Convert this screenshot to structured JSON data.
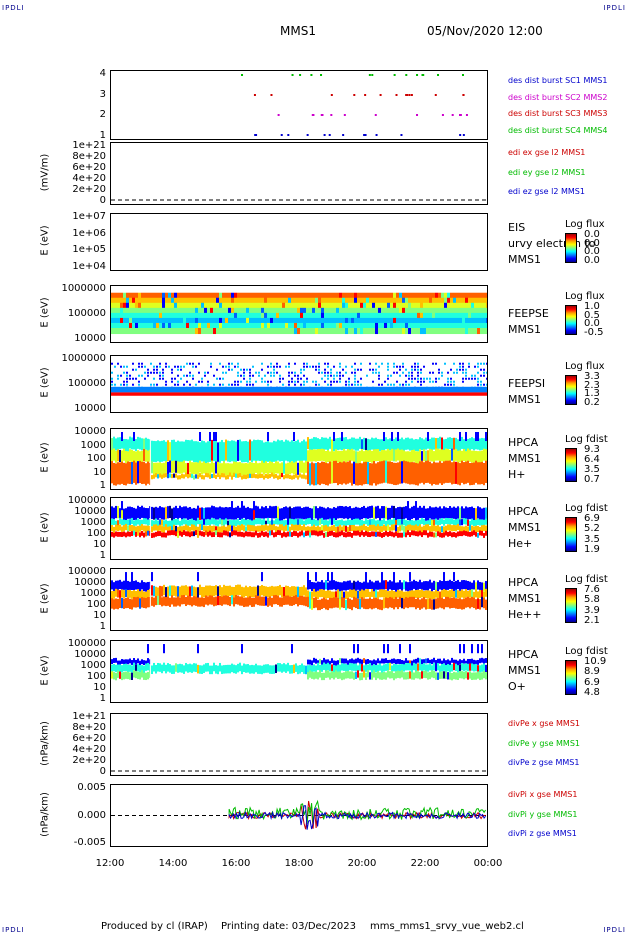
{
  "header": {
    "corner_text": "IPDLI",
    "title": "MMS1",
    "date": "05/Nov/2020 12:00"
  },
  "panels": [
    {
      "id": "p1",
      "ylabel": "",
      "yticks": [
        "4",
        "3",
        "2",
        "1"
      ],
      "legend": [
        {
          "text": "des dist burst SC1 MMS1",
          "color": "#0000cc"
        },
        {
          "text": "des dist burst SC2 MMS2",
          "color": "#cc00cc"
        },
        {
          "text": "des dist burst SC3 MMS3",
          "color": "#cc0000"
        },
        {
          "text": "des dist burst SC4 MMS4",
          "color": "#00bb00"
        }
      ]
    },
    {
      "id": "p2",
      "ylabel": "(mV/m)",
      "yticks": [
        "1e+21",
        "8e+20",
        "6e+20",
        "4e+20",
        "2e+20",
        "0"
      ],
      "legend": [
        {
          "text": "edi ex gse l2 MMS1",
          "color": "#cc0000"
        },
        {
          "text": "edi ey gse l2 MMS1",
          "color": "#00bb00"
        },
        {
          "text": "edi ez gse l2 MMS1",
          "color": "#0000cc"
        }
      ]
    },
    {
      "id": "p3",
      "ylabel": "E (eV)",
      "yticks": [
        "1e+07",
        "1e+06",
        "1e+05",
        "1e+04"
      ],
      "right": [
        "EIS",
        "urvy electron to",
        "MMS1"
      ],
      "cbar": {
        "title": "Log flux",
        "values": [
          "0.0",
          "0.0",
          "0.0",
          "0.0"
        ]
      }
    },
    {
      "id": "p4",
      "ylabel": "E (eV)",
      "yticks": [
        "1000000",
        "100000",
        "10000"
      ],
      "right": [
        "FEEPSE",
        "MMS1"
      ],
      "cbar": {
        "title": "Log flux",
        "values": [
          "1.0",
          "0.5",
          "0.0",
          "-0.5"
        ]
      }
    },
    {
      "id": "p5",
      "ylabel": "E (eV)",
      "yticks": [
        "1000000",
        "100000",
        "10000"
      ],
      "right": [
        "FEEPSI",
        "MMS1"
      ],
      "cbar": {
        "title": "Log flux",
        "values": [
          "3.3",
          "2.3",
          "1.3",
          "0.2"
        ]
      }
    },
    {
      "id": "p6",
      "ylabel": "E (eV)",
      "yticks": [
        "10000",
        "1000",
        "100",
        "10",
        "1"
      ],
      "right": [
        "HPCA",
        "MMS1",
        "H+"
      ],
      "cbar": {
        "title": "Log fdist",
        "values": [
          "9.3",
          "6.4",
          "3.5",
          "0.7"
        ]
      }
    },
    {
      "id": "p7",
      "ylabel": "E (eV)",
      "yticks": [
        "100000",
        "10000",
        "1000",
        "100",
        "10",
        "1"
      ],
      "right": [
        "HPCA",
        "MMS1",
        "He+"
      ],
      "cbar": {
        "title": "Log fdist",
        "values": [
          "6.9",
          "5.2",
          "3.5",
          "1.9"
        ]
      }
    },
    {
      "id": "p8",
      "ylabel": "E (eV)",
      "yticks": [
        "100000",
        "10000",
        "1000",
        "100",
        "10",
        "1"
      ],
      "right": [
        "HPCA",
        "MMS1",
        "He++"
      ],
      "cbar": {
        "title": "Log fdist",
        "values": [
          "7.6",
          "5.8",
          "3.9",
          "2.1"
        ]
      }
    },
    {
      "id": "p9",
      "ylabel": "E (eV)",
      "yticks": [
        "100000",
        "10000",
        "1000",
        "100",
        "10",
        "1"
      ],
      "right": [
        "HPCA",
        "MMS1",
        "O+"
      ],
      "cbar": {
        "title": "Log fdist",
        "values": [
          "10.9",
          "8.9",
          "6.9",
          "4.8"
        ]
      }
    },
    {
      "id": "p10",
      "ylabel": "(nPa/km)",
      "yticks": [
        "1e+21",
        "8e+20",
        "6e+20",
        "4e+20",
        "2e+20",
        "0"
      ],
      "legend": [
        {
          "text": "divPe x gse MMS1",
          "color": "#cc0000"
        },
        {
          "text": "divPe y gse MMS1",
          "color": "#00bb00"
        },
        {
          "text": "divPe z gse MMS1",
          "color": "#0000cc"
        }
      ]
    },
    {
      "id": "p11",
      "ylabel": "(nPa/km)",
      "yticks": [
        "0.005",
        "0.000",
        "-0.005"
      ],
      "legend": [
        {
          "text": "divPi x gse MMS1",
          "color": "#cc0000"
        },
        {
          "text": "divPi y gse MMS1",
          "color": "#00bb00"
        },
        {
          "text": "divPi z gse MMS1",
          "color": "#0000cc"
        }
      ]
    }
  ],
  "chart_data": {
    "type": "heatmap",
    "x_axis": {
      "ticks": [
        "12:00",
        "14:00",
        "16:00",
        "18:00",
        "20:00",
        "22:00",
        "00:00"
      ],
      "range": [
        "12:00",
        "00:00"
      ]
    },
    "events": {
      "hpca_break_1": "13:15",
      "hpca_break_2": "18:10",
      "divpi_start": "15:45"
    }
  },
  "footer": {
    "produced_by": "Produced by cl (IRAP)",
    "printing_date": "Printing date: 03/Dec/2023",
    "script": "mms_mms1_srvy_vue_web2.cl"
  }
}
